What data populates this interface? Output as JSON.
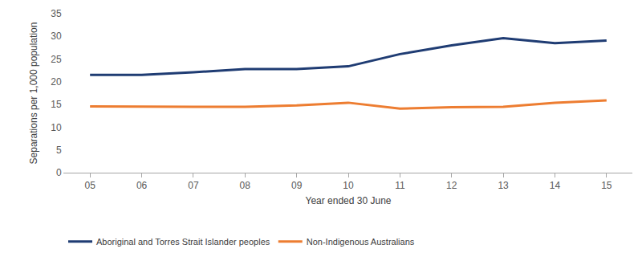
{
  "chart_data": {
    "type": "line",
    "x_label": "Year ended 30 June",
    "y_label": "Separations per 1,000 population",
    "categories": [
      "05",
      "06",
      "07",
      "08",
      "09",
      "10",
      "11",
      "12",
      "13",
      "14",
      "15"
    ],
    "series": [
      {
        "name": "Aboriginal and Torres Strait Islander peoples",
        "color": "#1f3c73",
        "values": [
          21.5,
          21.5,
          22.1,
          22.8,
          22.8,
          23.4,
          26.1,
          28.0,
          29.6,
          28.5,
          29.1
        ]
      },
      {
        "name": "Non-Indigenous Australians",
        "color": "#ed7d31",
        "values": [
          14.6,
          14.5,
          14.5,
          14.5,
          14.8,
          15.4,
          14.1,
          14.4,
          14.5,
          15.4,
          15.9
        ]
      }
    ],
    "ylim": [
      0,
      35
    ],
    "yticks": [
      0,
      5,
      10,
      15,
      20,
      25,
      30,
      35
    ],
    "grid": false,
    "legend": "bottom"
  }
}
